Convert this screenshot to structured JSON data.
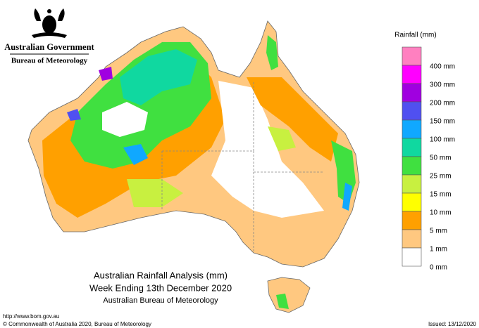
{
  "header": {
    "org": "Australian Government",
    "agency": "Bureau of Meteorology"
  },
  "legend": {
    "title": "Rainfall (mm)",
    "colors": [
      "#ff80c0",
      "#ff00ff",
      "#a000e0",
      "#5050f0",
      "#10a8ff",
      "#10d8a0",
      "#40e040",
      "#c8f040",
      "#ffff00",
      "#ffa000",
      "#ffc880",
      "#ffffff"
    ],
    "labels": [
      "400 mm",
      "300 mm",
      "200 mm",
      "150 mm",
      "100 mm",
      "50 mm",
      "25 mm",
      "15 mm",
      "10 mm",
      "5 mm",
      "1 mm",
      "0 mm"
    ]
  },
  "caption": {
    "title": "Australian Rainfall Analysis (mm)",
    "subtitle": "Week Ending 13th December 2020",
    "source": "Australian Bureau of Meteorology"
  },
  "footer": {
    "url": "http://www.bom.gov.au",
    "copyright": "© Commonwealth of Australia 2020, Bureau of Meteorology",
    "issued": "Issued: 13/12/2020"
  }
}
